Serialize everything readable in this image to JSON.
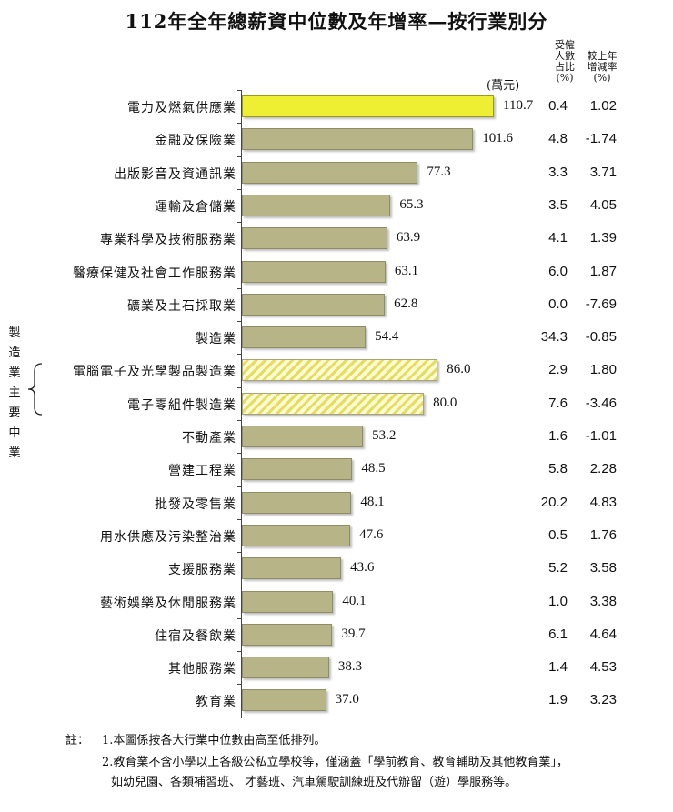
{
  "title": "112年全年總薪資中位數及年增率—按行業別分",
  "unit": "(萬元)",
  "headers": {
    "employee_share": [
      "受僱",
      "人數",
      "占比",
      "(%)"
    ],
    "yoy_change": [
      "較上年",
      "增減率",
      "(%)"
    ]
  },
  "group_label": [
    "製",
    "造",
    "業",
    "主",
    "要",
    "中",
    "業"
  ],
  "colors": {
    "highlight": "#eeee33",
    "bar": "#b7b587",
    "hatch_base": "#fdfbd4",
    "hatch_stripe": "#e5dd60"
  },
  "chart_data": {
    "type": "bar",
    "orientation": "horizontal",
    "categories": [
      "電力及燃氣供應業",
      "金融及保險業",
      "出版影音及資通訊業",
      "運輸及倉儲業",
      "專業科學及技術服務業",
      "醫療保健及社會工作服務業",
      "礦業及土石採取業",
      "製造業",
      "電腦電子及光學製品製造業",
      "電子零組件製造業",
      "不動產業",
      "營建工程業",
      "批發及零售業",
      "用水供應及污染整治業",
      "支援服務業",
      "藝術娛樂及休閒服務業",
      "住宿及餐飲業",
      "其他服務業",
      "教育業"
    ],
    "values": [
      110.7,
      101.6,
      77.3,
      65.3,
      63.9,
      63.1,
      62.8,
      54.4,
      86.0,
      80.0,
      53.2,
      48.5,
      48.1,
      47.6,
      43.6,
      40.1,
      39.7,
      38.3,
      37.0
    ],
    "value_labels": [
      "110.7",
      "101.6",
      "77.3",
      "65.3",
      "63.9",
      "63.1",
      "62.8",
      "54.4",
      "86.0",
      "80.0",
      "53.2",
      "48.5",
      "48.1",
      "47.6",
      "43.6",
      "40.1",
      "39.7",
      "38.3",
      "37.0"
    ],
    "employee_share_pct": [
      "0.4",
      "4.8",
      "3.3",
      "3.5",
      "4.1",
      "6.0",
      "0.0",
      "34.3",
      "2.9",
      "7.6",
      "1.6",
      "5.8",
      "20.2",
      "0.5",
      "5.2",
      "1.0",
      "6.1",
      "1.4",
      "1.9"
    ],
    "yoy_change_pct": [
      "1.02",
      "-1.74",
      "3.71",
      "4.05",
      "1.39",
      "1.87",
      "-7.69",
      "-0.85",
      "1.80",
      "-3.46",
      "-1.01",
      "2.28",
      "4.83",
      "1.76",
      "3.58",
      "3.38",
      "4.64",
      "4.53",
      "3.23"
    ],
    "styles": [
      "highlight",
      "plain",
      "plain",
      "plain",
      "plain",
      "plain",
      "plain",
      "plain",
      "hatched",
      "hatched",
      "plain",
      "plain",
      "plain",
      "plain",
      "plain",
      "plain",
      "plain",
      "plain",
      "plain"
    ],
    "xlim": [
      0,
      120
    ]
  },
  "notes": {
    "prefix": "註：",
    "line1": "1.本圖係按各大行業中位數由高至低排列。",
    "line2": "2.教育業不含小學以上各級公私立學校等，僅涵蓋「學前教育、教育輔助及其他教育業」，",
    "line3": "如幼兒園、各類補習班、 才藝班、汽車駕駛訓練班及代辦留（遊）學服務等。"
  }
}
